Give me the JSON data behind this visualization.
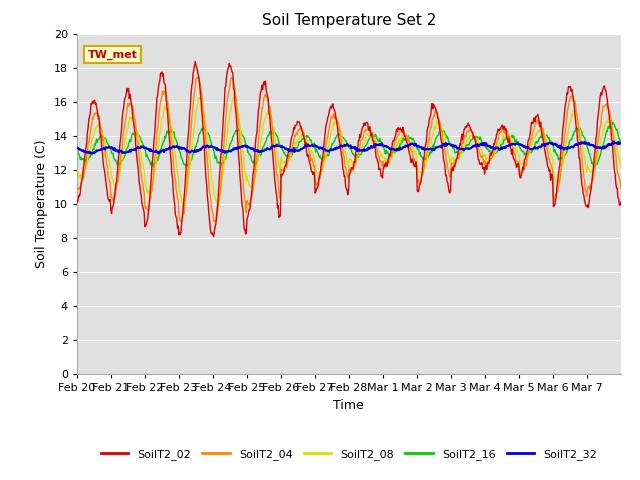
{
  "title": "Soil Temperature Set 2",
  "xlabel": "Time",
  "ylabel": "Soil Temperature (C)",
  "ylim": [
    0,
    20
  ],
  "yticks": [
    0,
    2,
    4,
    6,
    8,
    10,
    12,
    14,
    16,
    18,
    20
  ],
  "annotation": "TW_met",
  "plot_bg_color": "#e0e0e0",
  "fig_bg_color": "#ffffff",
  "series_colors": {
    "SoilT2_02": "#dd0000",
    "SoilT2_04": "#ff8800",
    "SoilT2_08": "#dddd00",
    "SoilT2_16": "#00cc00",
    "SoilT2_32": "#0000dd"
  },
  "xtick_labels": [
    "Feb 20",
    "Feb 21",
    "Feb 22",
    "Feb 23",
    "Feb 24",
    "Feb 25",
    "Feb 26",
    "Feb 27",
    "Feb 28",
    "Mar 1",
    "Mar 2",
    "Mar 3",
    "Mar 4",
    "Mar 5",
    "Mar 6",
    "Mar 7"
  ],
  "legend_labels": [
    "SoilT2_02",
    "SoilT2_04",
    "SoilT2_08",
    "SoilT2_16",
    "SoilT2_32"
  ]
}
